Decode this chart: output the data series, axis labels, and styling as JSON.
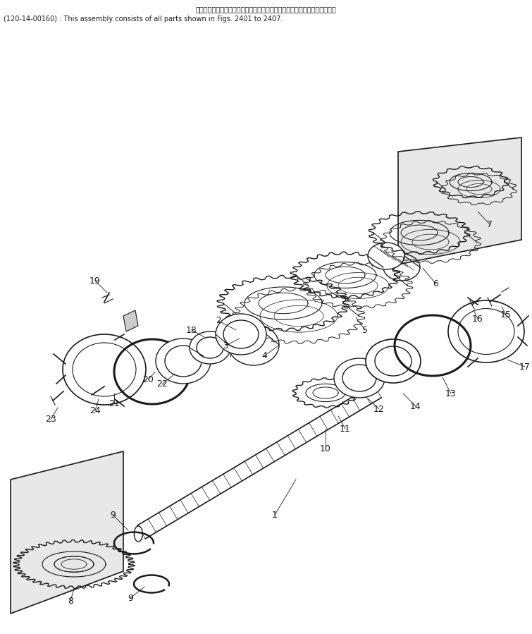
{
  "title_line1": "このアセンブリの構成部品は第２４０１図から第２４０７図まで含みます。",
  "title_line2": "(120-14-00160) : This assembly consists of all parts shown in Figs. 2401 to 2407.",
  "bg_color": "#ffffff",
  "line_color": "#1a1a1a",
  "fig_width": 7.55,
  "fig_height": 8.99,
  "dpi": 100
}
